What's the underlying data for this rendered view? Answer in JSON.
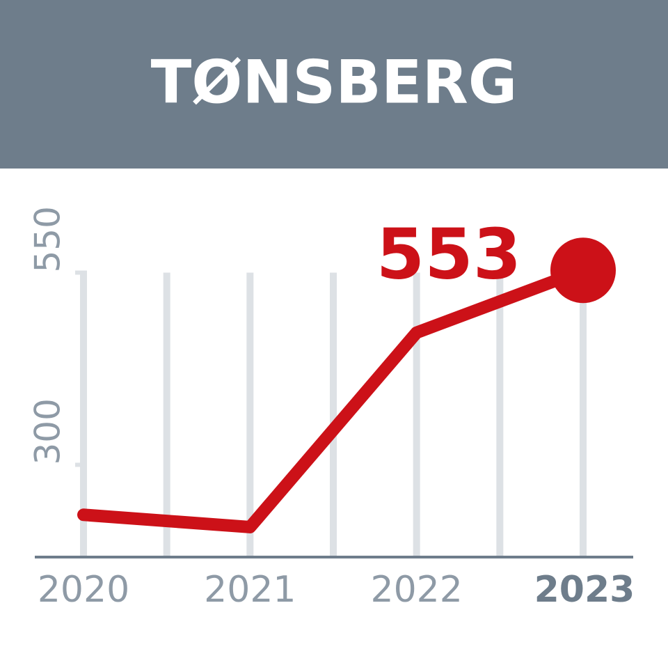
{
  "chart_data": {
    "type": "line",
    "title": "TØNSBERG",
    "x": [
      2020,
      2021,
      2022,
      2023
    ],
    "series": [
      {
        "name": null,
        "color": "#cc1118",
        "values": [
          235,
          219,
          472,
          553
        ]
      }
    ],
    "value_label": "553",
    "xlim": [
      2020,
      2023
    ],
    "xticks": [
      2020,
      2021,
      2022,
      2023
    ],
    "ylim": [
      180,
      560
    ],
    "yticks": [
      300,
      550
    ],
    "grid": true
  }
}
